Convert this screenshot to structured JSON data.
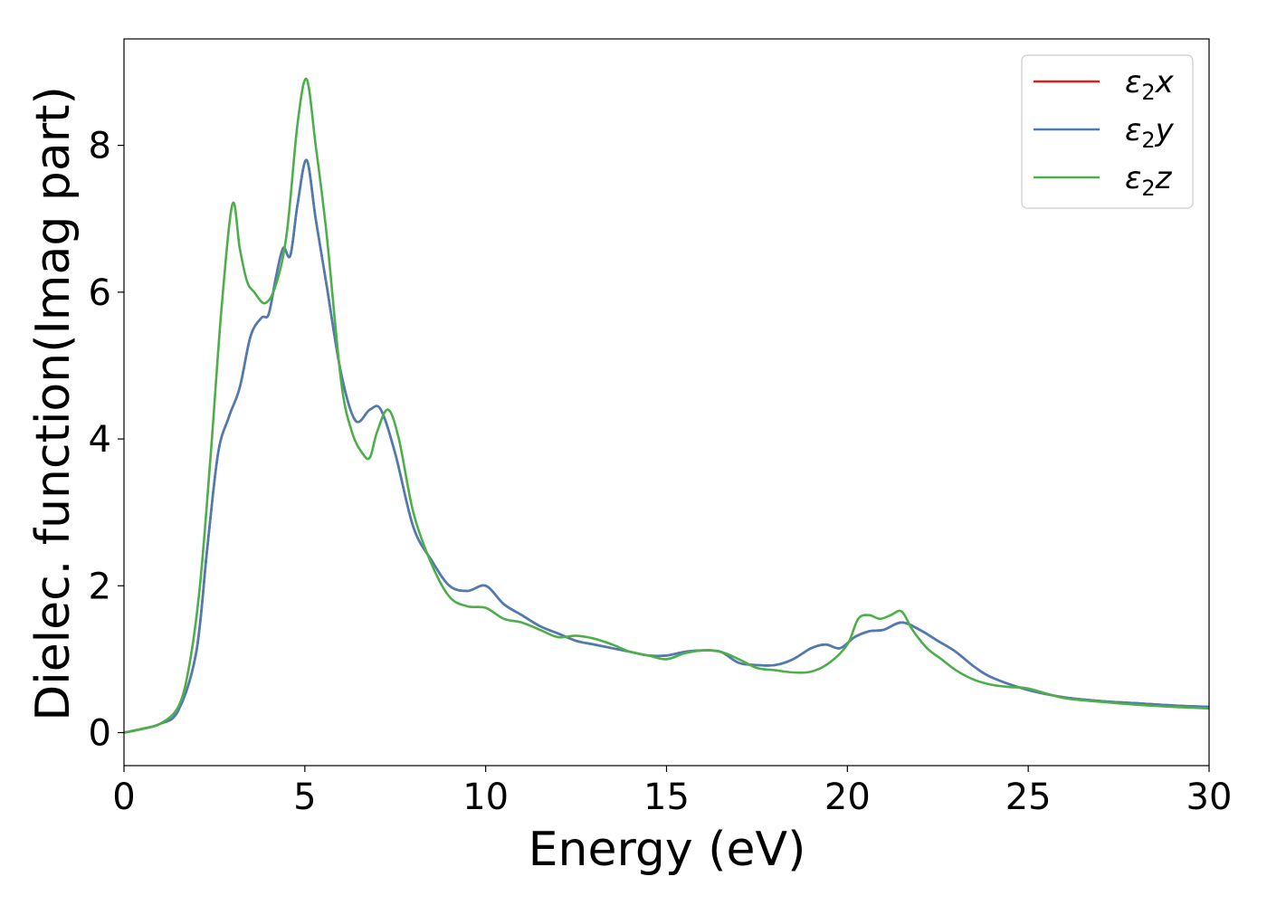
{
  "chart_data": {
    "type": "line",
    "xlabel": "Energy (eV)",
    "ylabel": "Dielec. function(Imag part)",
    "xlim": [
      0,
      30
    ],
    "ylim": [
      -0.45,
      9.45
    ],
    "xticks": [
      0,
      5,
      10,
      15,
      20,
      25,
      30
    ],
    "yticks": [
      0,
      2,
      4,
      6,
      8
    ],
    "grid": false,
    "legend": "top-right",
    "series": [
      {
        "name": "ε₂x",
        "legend_base": "ε",
        "legend_sub": "2",
        "legend_suffix": "x",
        "color": "#e41a1c",
        "x": [
          0,
          0.5,
          1.0,
          1.5,
          2.0,
          2.3,
          2.6,
          2.9,
          3.2,
          3.5,
          3.8,
          4.0,
          4.2,
          4.4,
          4.6,
          4.8,
          5.05,
          5.3,
          5.6,
          6.0,
          6.4,
          6.8,
          7.1,
          7.5,
          8.0,
          8.5,
          9.0,
          9.5,
          10.0,
          10.5,
          11.0,
          11.5,
          12.0,
          12.5,
          13.0,
          13.5,
          14.0,
          14.5,
          15.0,
          15.5,
          16.0,
          16.5,
          17.0,
          17.5,
          18.0,
          18.5,
          19.0,
          19.4,
          19.8,
          20.2,
          20.6,
          21.0,
          21.5,
          22.0,
          22.5,
          23.0,
          23.5,
          24.0,
          25.0,
          26.0,
          27.0,
          28.0,
          29.0,
          30.0
        ],
        "y": [
          0,
          0.05,
          0.12,
          0.3,
          1.1,
          2.5,
          3.8,
          4.3,
          4.7,
          5.4,
          5.65,
          5.7,
          6.2,
          6.6,
          6.5,
          7.2,
          7.8,
          7.0,
          6.1,
          4.9,
          4.25,
          4.4,
          4.4,
          3.8,
          2.8,
          2.35,
          2.0,
          1.93,
          2.0,
          1.75,
          1.6,
          1.45,
          1.35,
          1.25,
          1.2,
          1.15,
          1.1,
          1.05,
          1.05,
          1.1,
          1.12,
          1.1,
          0.95,
          0.92,
          0.92,
          1.0,
          1.15,
          1.2,
          1.15,
          1.3,
          1.38,
          1.4,
          1.5,
          1.4,
          1.25,
          1.1,
          0.9,
          0.75,
          0.58,
          0.48,
          0.43,
          0.4,
          0.37,
          0.35
        ]
      },
      {
        "name": "ε₂y",
        "legend_base": "ε",
        "legend_sub": "2",
        "legend_suffix": "y",
        "color": "#4a7db5",
        "x": [
          0,
          0.5,
          1.0,
          1.5,
          2.0,
          2.3,
          2.6,
          2.9,
          3.2,
          3.5,
          3.8,
          4.0,
          4.2,
          4.4,
          4.6,
          4.8,
          5.05,
          5.3,
          5.6,
          6.0,
          6.4,
          6.8,
          7.1,
          7.5,
          8.0,
          8.5,
          9.0,
          9.5,
          10.0,
          10.5,
          11.0,
          11.5,
          12.0,
          12.5,
          13.0,
          13.5,
          14.0,
          14.5,
          15.0,
          15.5,
          16.0,
          16.5,
          17.0,
          17.5,
          18.0,
          18.5,
          19.0,
          19.4,
          19.8,
          20.2,
          20.6,
          21.0,
          21.5,
          22.0,
          22.5,
          23.0,
          23.5,
          24.0,
          25.0,
          26.0,
          27.0,
          28.0,
          29.0,
          30.0
        ],
        "y": [
          0,
          0.05,
          0.12,
          0.3,
          1.1,
          2.5,
          3.8,
          4.3,
          4.7,
          5.4,
          5.65,
          5.7,
          6.2,
          6.6,
          6.5,
          7.2,
          7.8,
          7.0,
          6.1,
          4.9,
          4.25,
          4.4,
          4.4,
          3.8,
          2.8,
          2.35,
          2.0,
          1.93,
          2.0,
          1.75,
          1.6,
          1.45,
          1.35,
          1.25,
          1.2,
          1.15,
          1.1,
          1.05,
          1.05,
          1.1,
          1.12,
          1.1,
          0.95,
          0.92,
          0.92,
          1.0,
          1.15,
          1.2,
          1.15,
          1.3,
          1.38,
          1.4,
          1.5,
          1.4,
          1.25,
          1.1,
          0.9,
          0.75,
          0.58,
          0.48,
          0.43,
          0.4,
          0.37,
          0.35
        ]
      },
      {
        "name": "ε₂z",
        "legend_base": "ε",
        "legend_sub": "2",
        "legend_suffix": "z",
        "color": "#4daf4a",
        "x": [
          0,
          0.5,
          1.0,
          1.5,
          1.8,
          2.1,
          2.4,
          2.7,
          3.0,
          3.2,
          3.4,
          3.6,
          3.9,
          4.2,
          4.5,
          4.8,
          5.05,
          5.3,
          5.6,
          6.0,
          6.3,
          6.6,
          6.8,
          7.0,
          7.3,
          7.6,
          8.0,
          8.5,
          9.0,
          9.5,
          10.0,
          10.5,
          11.0,
          11.5,
          12.0,
          12.5,
          13.0,
          13.5,
          14.0,
          14.5,
          15.0,
          15.5,
          16.0,
          16.5,
          17.0,
          17.5,
          18.0,
          18.5,
          19.0,
          19.5,
          20.0,
          20.3,
          20.6,
          20.9,
          21.2,
          21.5,
          21.8,
          22.2,
          22.6,
          23.0,
          23.5,
          24.0,
          24.5,
          25.0,
          26.0,
          27.0,
          28.0,
          29.0,
          30.0
        ],
        "y": [
          0,
          0.05,
          0.12,
          0.35,
          0.9,
          2.0,
          3.8,
          5.8,
          7.2,
          6.6,
          6.15,
          6.0,
          5.85,
          6.1,
          6.8,
          8.3,
          8.9,
          8.0,
          6.8,
          4.8,
          4.1,
          3.8,
          3.75,
          4.1,
          4.4,
          4.0,
          3.0,
          2.3,
          1.85,
          1.72,
          1.7,
          1.55,
          1.5,
          1.4,
          1.3,
          1.32,
          1.28,
          1.2,
          1.1,
          1.05,
          1.0,
          1.08,
          1.12,
          1.1,
          1.0,
          0.88,
          0.85,
          0.82,
          0.83,
          0.95,
          1.2,
          1.55,
          1.6,
          1.55,
          1.6,
          1.65,
          1.4,
          1.15,
          1.0,
          0.85,
          0.72,
          0.65,
          0.62,
          0.6,
          0.47,
          0.42,
          0.38,
          0.35,
          0.33
        ]
      }
    ]
  }
}
